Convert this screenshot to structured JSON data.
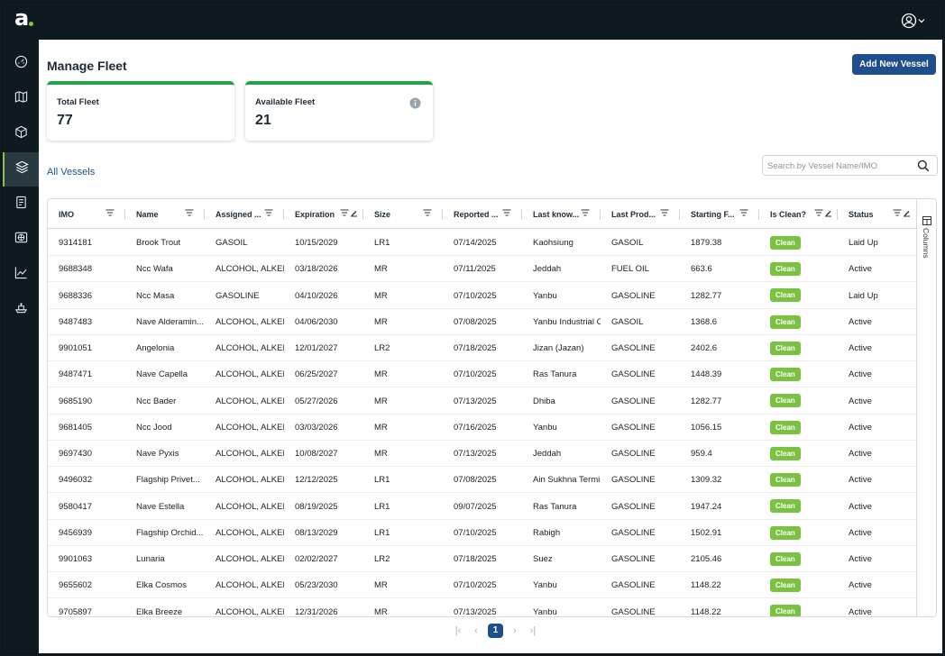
{
  "brand": {
    "logo_letter": "a",
    "accent": "#8bc53f"
  },
  "header": {
    "user_icon": "user-circle-icon"
  },
  "sidebar": {
    "items": [
      {
        "icon": "dashboard-gauge-icon"
      },
      {
        "icon": "map-icon"
      },
      {
        "icon": "package-box-icon"
      },
      {
        "icon": "layers-icon",
        "active": true
      },
      {
        "icon": "notebook-icon"
      },
      {
        "icon": "world-map-icon"
      },
      {
        "icon": "trend-chart-icon"
      },
      {
        "icon": "ship-icon"
      }
    ]
  },
  "page": {
    "title": "Manage Fleet",
    "add_button": "Add New Vessel"
  },
  "cards": {
    "total": {
      "label": "Total Fleet",
      "value": "77"
    },
    "available": {
      "label": "Available Fleet",
      "value": "21"
    }
  },
  "section": {
    "title": "All Vessels"
  },
  "search": {
    "placeholder": "Search by Vessel Name/IMO",
    "value": ""
  },
  "table": {
    "columns": [
      "IMO",
      "Name",
      "Assigned ...",
      "Expiration",
      "Size",
      "Reported ...",
      "Last know...",
      "Last Prod...",
      "Starting F...",
      "Is Clean?",
      "Status"
    ],
    "rows": [
      [
        "9314181",
        "Brook Trout",
        "GASOIL",
        "10/15/2029",
        "LR1",
        "07/14/2025",
        "Kaohsiung",
        "GASOIL",
        "1879.38",
        "Clean",
        "Laid Up"
      ],
      [
        "9688348",
        "Ncc Wafa",
        "ALCOHOL, ALKENES",
        "03/18/2026",
        "MR",
        "07/11/2025",
        "Jeddah",
        "FUEL OIL",
        "663.6",
        "Clean",
        "Active"
      ],
      [
        "9688336",
        "Ncc Masa",
        "GASOLINE",
        "04/10/2026",
        "MR",
        "07/10/2025",
        "Yanbu",
        "GASOLINE",
        "1282.77",
        "Clean",
        "Laid Up"
      ],
      [
        "9487483",
        "Nave Alderamin...",
        "ALCOHOL, ALKENES",
        "04/06/2030",
        "MR",
        "07/08/2025",
        "Yanbu Industrial City",
        "GASOIL",
        "1368.6",
        "Clean",
        "Active"
      ],
      [
        "9901051",
        "Angelonia",
        "ALCOHOL, ALKENES",
        "12/01/2027",
        "LR2",
        "07/18/2025",
        "Jizan (Jazan)",
        "GASOLINE",
        "2402.6",
        "Clean",
        "Active"
      ],
      [
        "9487471",
        "Nave Capella",
        "ALCOHOL, ALKENES",
        "06/25/2027",
        "MR",
        "07/10/2025",
        "Ras Tanura",
        "GASOLINE",
        "1448.39",
        "Clean",
        "Active"
      ],
      [
        "9685190",
        "Ncc Bader",
        "ALCOHOL, ALKENES",
        "05/27/2026",
        "MR",
        "07/13/2025",
        "Dhiba",
        "GASOLINE",
        "1282.77",
        "Clean",
        "Active"
      ],
      [
        "9681405",
        "Ncc Jood",
        "ALCOHOL, ALKENES",
        "03/03/2026",
        "MR",
        "07/16/2025",
        "Yanbu",
        "GASOLINE",
        "1056.15",
        "Clean",
        "Active"
      ],
      [
        "9697430",
        "Nave Pyxis",
        "ALCOHOL, ALKENES",
        "10/08/2027",
        "MR",
        "07/13/2025",
        "Jeddah",
        "GASOLINE",
        "959.4",
        "Clean",
        "Active"
      ],
      [
        "9496032",
        "Flagship Privet...",
        "ALCOHOL, ALKENES",
        "12/12/2025",
        "LR1",
        "07/08/2025",
        "Ain Sukhna Terminal",
        "GASOLINE",
        "1309.32",
        "Clean",
        "Active"
      ],
      [
        "9580417",
        "Nave Estella",
        "ALCOHOL, ALKENES",
        "08/19/2025",
        "LR1",
        "09/07/2025",
        "Ras Tanura",
        "GASOLINE",
        "1947.24",
        "Clean",
        "Active"
      ],
      [
        "9456939",
        "Flagship Orchid...",
        "ALCOHOL, ALKENES",
        "08/13/2029",
        "LR1",
        "07/10/2025",
        "Rabigh",
        "GASOLINE",
        "1502.91",
        "Clean",
        "Active"
      ],
      [
        "9901063",
        "Lunaria",
        "ALCOHOL, ALKENES",
        "02/02/2027",
        "LR2",
        "07/18/2025",
        "Suez",
        "GASOLINE",
        "2105.46",
        "Clean",
        "Active"
      ],
      [
        "9655602",
        "Elka Cosmos",
        "ALCOHOL, ALKENES",
        "05/23/2030",
        "MR",
        "07/10/2025",
        "Yanbu",
        "GASOLINE",
        "1148.22",
        "Clean",
        "Active"
      ],
      [
        "9705897",
        "Elka Breeze",
        "ALCOHOL, ALKENES",
        "12/31/2026",
        "MR",
        "07/13/2025",
        "Yanbu",
        "GASOLINE",
        "1148.22",
        "Clean",
        "Active"
      ]
    ],
    "side_panel_label": "Columns"
  },
  "pagination": {
    "current_page": "1"
  },
  "colors": {
    "primary": "#1e4f8c",
    "clean_badge": "#7cc242",
    "card_top": "#22a34a",
    "dark_bg": "#0e1a1f"
  }
}
